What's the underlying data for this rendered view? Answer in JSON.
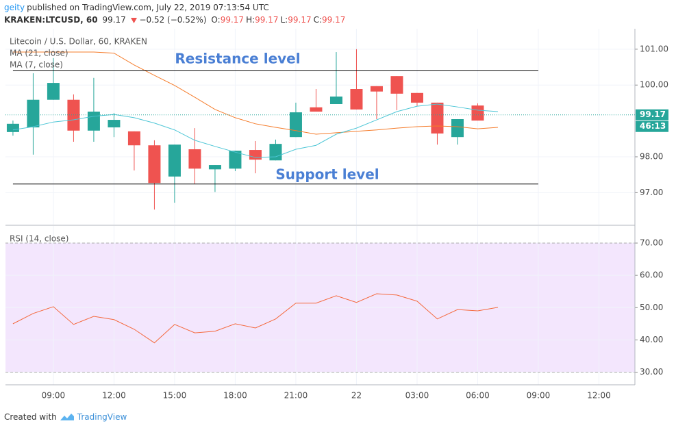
{
  "header": {
    "user": "geity",
    "published": "published on TradingView.com, July 22, 2019 07:13:54 UTC",
    "symbol": "KRAKEN:LTCUSD, 60",
    "price": "99.17",
    "change": "−0.52 (−0.52%)",
    "ohlc": [
      {
        "label": "O:",
        "value": "99.17"
      },
      {
        "label": "H:",
        "value": "99.17"
      },
      {
        "label": "L:",
        "value": "99.17"
      },
      {
        "label": "C:",
        "value": "99.17"
      }
    ]
  },
  "footer": {
    "created": "Created with",
    "brand": "TradingView"
  },
  "chart_data": [
    {
      "type": "candlestick",
      "title": "Litecoin / U.S. Dollar, 60, KRAKEN",
      "xlim": [
        -0.37,
        30.78
      ],
      "xticks": [
        {
          "value": 2,
          "label": "09:00"
        },
        {
          "value": 5,
          "label": "12:00"
        },
        {
          "value": 8,
          "label": "15:00"
        },
        {
          "value": 11,
          "label": "18:00"
        },
        {
          "value": 14,
          "label": "21:00"
        },
        {
          "value": 17,
          "label": "22"
        },
        {
          "value": 20,
          "label": "03:00"
        },
        {
          "value": 23,
          "label": "06:00"
        },
        {
          "value": 26,
          "label": "09:00"
        },
        {
          "value": 29,
          "label": "12:00"
        }
      ],
      "ylim": [
        96.11,
        101.57
      ],
      "yticks": [
        {
          "value": 97,
          "label": "97.00"
        },
        {
          "value": 98,
          "label": "98.00"
        },
        {
          "value": 100,
          "label": "100.00"
        },
        {
          "value": 101,
          "label": "101.00"
        }
      ],
      "grid": true,
      "up_color": "#26a69a",
      "down_color": "#ef5350",
      "open": [
        98.69,
        98.82,
        99.59,
        99.59,
        98.73,
        98.82,
        98.71,
        98.32,
        97.45,
        98.21,
        97.65,
        97.67,
        98.19,
        97.9,
        98.55,
        99.38,
        99.47,
        99.89,
        99.97,
        100.25,
        99.78,
        99.51,
        98.55,
        99.43,
        null
      ],
      "high": [
        99.01,
        100.33,
        100.75,
        99.74,
        100.2,
        99.22,
        98.71,
        98.46,
        98.34,
        98.8,
        97.77,
        98.17,
        98.44,
        98.48,
        99.51,
        99.89,
        100.92,
        101.0,
        99.97,
        100.25,
        99.78,
        99.51,
        99.05,
        99.49,
        null
      ],
      "low": [
        98.59,
        98.06,
        99.59,
        98.42,
        98.42,
        98.55,
        97.62,
        96.53,
        96.72,
        97.25,
        97.02,
        97.6,
        97.54,
        97.9,
        98.55,
        99.26,
        99.47,
        99.32,
        99.05,
        99.3,
        99.41,
        98.34,
        98.34,
        99.01,
        null
      ],
      "close": [
        98.92,
        99.59,
        100.06,
        98.73,
        99.26,
        99.03,
        98.32,
        97.27,
        98.34,
        97.67,
        97.77,
        98.17,
        97.92,
        98.36,
        99.24,
        99.26,
        99.68,
        99.32,
        99.82,
        99.76,
        99.51,
        98.65,
        99.05,
        99.01,
        null
      ],
      "series": [
        {
          "name": "MA (21, close)",
          "color": "#f57c2b",
          "values": [
            100.92,
            100.92,
            100.92,
            100.92,
            100.92,
            100.89,
            100.56,
            100.27,
            99.99,
            99.66,
            99.32,
            99.09,
            98.92,
            98.82,
            98.73,
            98.63,
            98.67,
            98.71,
            98.75,
            98.8,
            98.84,
            98.86,
            98.84,
            98.78,
            98.82
          ]
        },
        {
          "name": "MA (7, close)",
          "color": "#4dc6d6",
          "values": [
            98.75,
            98.84,
            98.97,
            99.03,
            99.13,
            99.18,
            99.09,
            98.94,
            98.75,
            98.46,
            98.29,
            98.13,
            97.98,
            98.0,
            98.21,
            98.32,
            98.63,
            98.8,
            99.03,
            99.26,
            99.41,
            99.47,
            99.39,
            99.3,
            99.26
          ]
        }
      ],
      "levels": [
        100.41,
        97.24
      ],
      "annotations": [
        "Resistance level",
        "Support level"
      ],
      "annotation_color": "#4a7fd4",
      "last_price": 99.17,
      "countdown": "46:13"
    },
    {
      "type": "line",
      "title": "RSI (14, close)",
      "ylim": [
        26.1,
        75.3
      ],
      "yticks": [
        {
          "value": 30,
          "label": "30.00"
        },
        {
          "value": 40,
          "label": "40.00"
        },
        {
          "value": 50,
          "label": "50.00"
        },
        {
          "value": 60,
          "label": "60.00"
        },
        {
          "value": 70,
          "label": "70.00"
        }
      ],
      "band": [
        30,
        70
      ],
      "band_color": "#f3e6fd",
      "series": [
        {
          "name": "RSI (14, close)",
          "color": "#f4693d",
          "values": [
            45.0,
            48.2,
            50.3,
            44.8,
            47.3,
            46.3,
            43.3,
            39.1,
            44.8,
            42.2,
            42.7,
            45.0,
            43.7,
            46.5,
            51.4,
            51.4,
            53.7,
            51.6,
            54.3,
            53.9,
            52.0,
            46.5,
            49.4,
            49.0,
            50.1
          ]
        }
      ]
    }
  ]
}
